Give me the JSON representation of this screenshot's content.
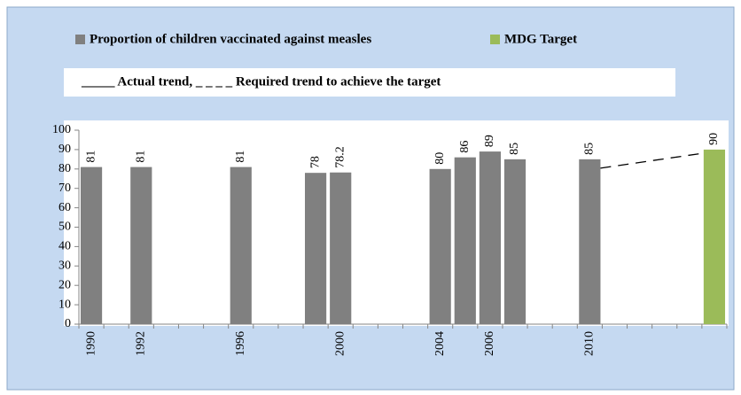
{
  "chart_data": {
    "type": "bar",
    "annotation": "_____ Actual trend,   _ _ _ _ Required trend to achieve the target",
    "categories": [
      "1990",
      null,
      "1992",
      null,
      null,
      null,
      "1996",
      null,
      null,
      null,
      "2000",
      null,
      null,
      null,
      "2004",
      null,
      "2006",
      null,
      null,
      null,
      "2010",
      null,
      null,
      null,
      null,
      null
    ],
    "series": [
      {
        "name": "Proportion of children vaccinated against measles",
        "color": "#808080",
        "values": [
          81,
          null,
          81,
          null,
          null,
          null,
          81,
          null,
          null,
          78,
          78.2,
          null,
          null,
          null,
          80,
          86,
          89,
          85,
          null,
          null,
          85,
          null,
          null,
          null,
          null,
          null
        ]
      },
      {
        "name": "MDG Target",
        "color": "#9bbb59",
        "values": [
          null,
          null,
          null,
          null,
          null,
          null,
          null,
          null,
          null,
          null,
          null,
          null,
          null,
          null,
          null,
          null,
          null,
          null,
          null,
          null,
          null,
          null,
          null,
          null,
          null,
          90
        ]
      }
    ],
    "ylim": [
      0,
      100
    ],
    "yticks": [
      0,
      10,
      20,
      30,
      40,
      50,
      60,
      70,
      80,
      90,
      100
    ]
  }
}
